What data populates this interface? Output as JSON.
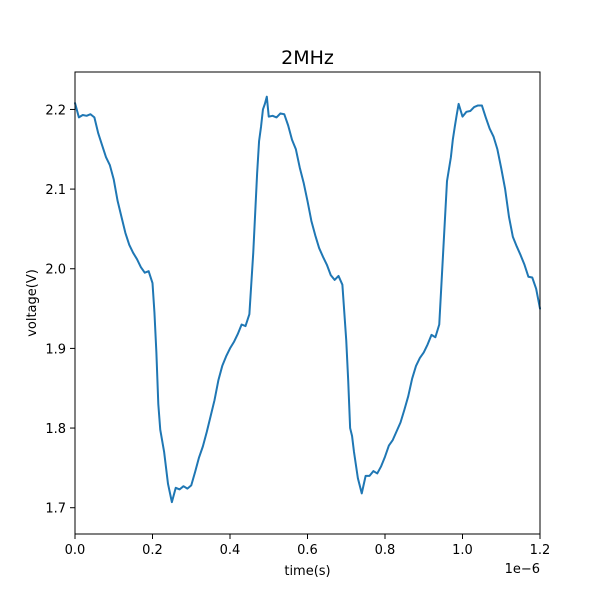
{
  "chart_data": {
    "type": "line",
    "title": "2MHz",
    "xlabel": "time(s)",
    "ylabel": "voltage(V)",
    "x_offset_label": "1e−6",
    "xlim": [
      0.0,
      1.2
    ],
    "ylim": [
      1.667,
      2.247
    ],
    "xticks": [
      0.0,
      0.2,
      0.4,
      0.6,
      0.8,
      1.0,
      1.2
    ],
    "xtick_labels": [
      "0.0",
      "0.2",
      "0.4",
      "0.6",
      "0.8",
      "1.0",
      "1.2"
    ],
    "yticks": [
      1.7,
      1.8,
      1.9,
      2.0,
      2.1,
      2.2
    ],
    "ytick_labels": [
      "1.7",
      "1.8",
      "1.9",
      "2.0",
      "2.1",
      "2.2"
    ],
    "grid": false,
    "series": [
      {
        "color": "#1f77b4",
        "x": [
          0.0,
          0.01,
          0.02,
          0.03,
          0.04,
          0.05,
          0.06,
          0.07,
          0.08,
          0.09,
          0.1,
          0.11,
          0.12,
          0.13,
          0.14,
          0.15,
          0.16,
          0.17,
          0.18,
          0.19,
          0.2,
          0.205,
          0.21,
          0.215,
          0.22,
          0.23,
          0.24,
          0.25,
          0.26,
          0.27,
          0.28,
          0.29,
          0.3,
          0.31,
          0.32,
          0.33,
          0.34,
          0.35,
          0.36,
          0.37,
          0.38,
          0.39,
          0.4,
          0.41,
          0.42,
          0.43,
          0.44,
          0.45,
          0.46,
          0.47,
          0.475,
          0.48,
          0.485,
          0.49,
          0.495,
          0.5,
          0.51,
          0.52,
          0.53,
          0.54,
          0.55,
          0.56,
          0.57,
          0.58,
          0.59,
          0.6,
          0.61,
          0.62,
          0.63,
          0.64,
          0.65,
          0.66,
          0.67,
          0.68,
          0.69,
          0.7,
          0.705,
          0.71,
          0.715,
          0.72,
          0.73,
          0.74,
          0.75,
          0.76,
          0.77,
          0.78,
          0.79,
          0.8,
          0.81,
          0.82,
          0.83,
          0.84,
          0.85,
          0.86,
          0.87,
          0.88,
          0.89,
          0.9,
          0.91,
          0.92,
          0.93,
          0.94,
          0.95,
          0.96,
          0.97,
          0.975,
          0.98,
          0.985,
          0.99,
          1.0,
          1.01,
          1.02,
          1.03,
          1.04,
          1.05,
          1.06,
          1.07,
          1.08,
          1.09,
          1.1,
          1.11,
          1.12,
          1.13,
          1.14,
          1.15,
          1.16,
          1.17,
          1.18,
          1.19,
          1.2
        ],
        "y": [
          2.208,
          2.19,
          2.193,
          2.192,
          2.194,
          2.19,
          2.17,
          2.155,
          2.14,
          2.13,
          2.112,
          2.085,
          2.065,
          2.045,
          2.03,
          2.02,
          2.012,
          2.002,
          1.995,
          1.997,
          1.982,
          1.945,
          1.895,
          1.83,
          1.798,
          1.77,
          1.73,
          1.707,
          1.725,
          1.723,
          1.727,
          1.724,
          1.728,
          1.745,
          1.763,
          1.777,
          1.795,
          1.815,
          1.835,
          1.86,
          1.878,
          1.89,
          1.9,
          1.908,
          1.918,
          1.93,
          1.928,
          1.943,
          2.02,
          2.12,
          2.16,
          2.178,
          2.2,
          2.207,
          2.216,
          2.191,
          2.192,
          2.19,
          2.195,
          2.194,
          2.18,
          2.162,
          2.15,
          2.127,
          2.108,
          2.085,
          2.06,
          2.042,
          2.026,
          2.015,
          2.005,
          1.992,
          1.986,
          1.991,
          1.98,
          1.91,
          1.86,
          1.8,
          1.79,
          1.77,
          1.737,
          1.718,
          1.74,
          1.74,
          1.746,
          1.743,
          1.752,
          1.764,
          1.778,
          1.785,
          1.796,
          1.807,
          1.823,
          1.84,
          1.862,
          1.878,
          1.888,
          1.895,
          1.905,
          1.917,
          1.914,
          1.93,
          2.02,
          2.11,
          2.14,
          2.162,
          2.178,
          2.193,
          2.207,
          2.191,
          2.197,
          2.198,
          2.203,
          2.205,
          2.205,
          2.19,
          2.176,
          2.166,
          2.15,
          2.126,
          2.1,
          2.065,
          2.04,
          2.028,
          2.017,
          2.005,
          1.99,
          1.989,
          1.975,
          1.95
        ]
      }
    ]
  }
}
